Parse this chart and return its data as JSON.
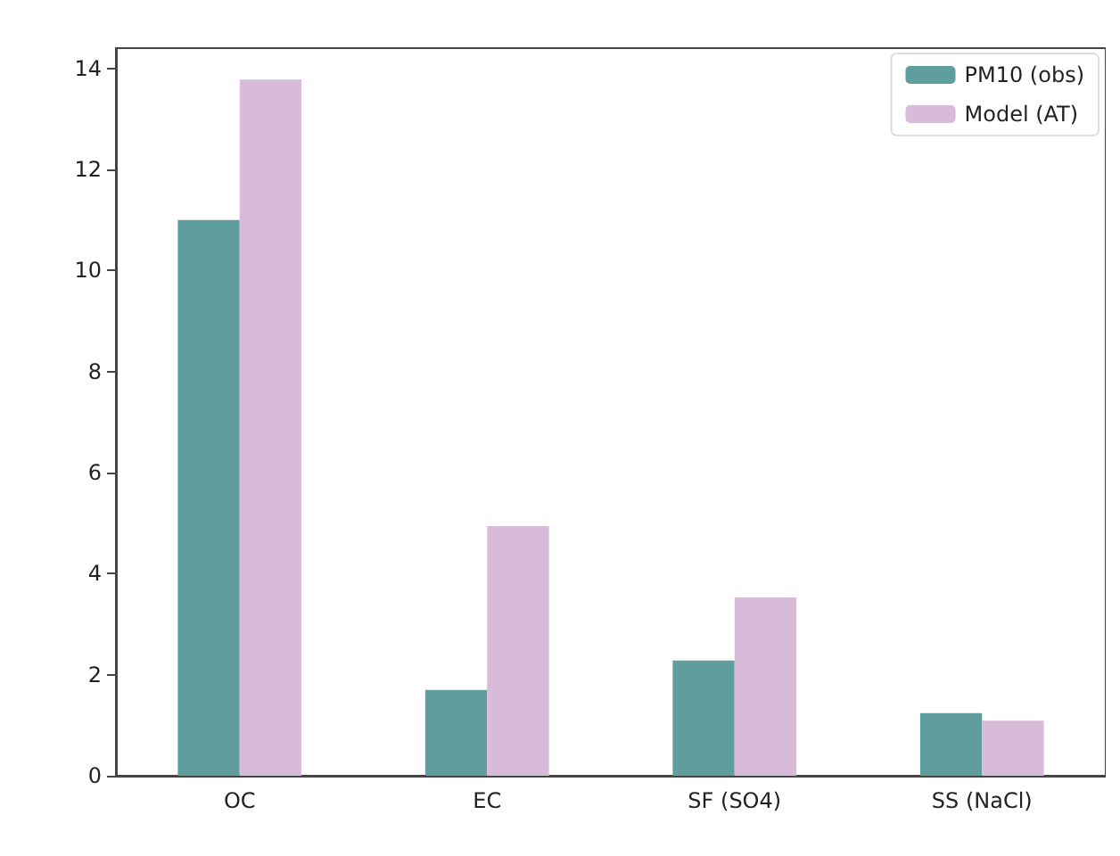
{
  "chart_data": {
    "type": "bar",
    "categories": [
      "OC",
      "EC",
      "SF (SO4)",
      "SS (NaCl)"
    ],
    "series": [
      {
        "name": "PM10 (obs)",
        "color": "#5f9e9c",
        "values": [
          11.0,
          1.7,
          2.28,
          1.24
        ]
      },
      {
        "name": "Model (AT)",
        "color": "#d8bbd8",
        "values": [
          13.78,
          4.94,
          3.53,
          1.09
        ]
      }
    ],
    "ylim": [
      0,
      14.4
    ],
    "yticks": [
      0,
      2,
      4,
      6,
      8,
      10,
      12,
      14
    ],
    "grid": false,
    "legend": "top right"
  }
}
